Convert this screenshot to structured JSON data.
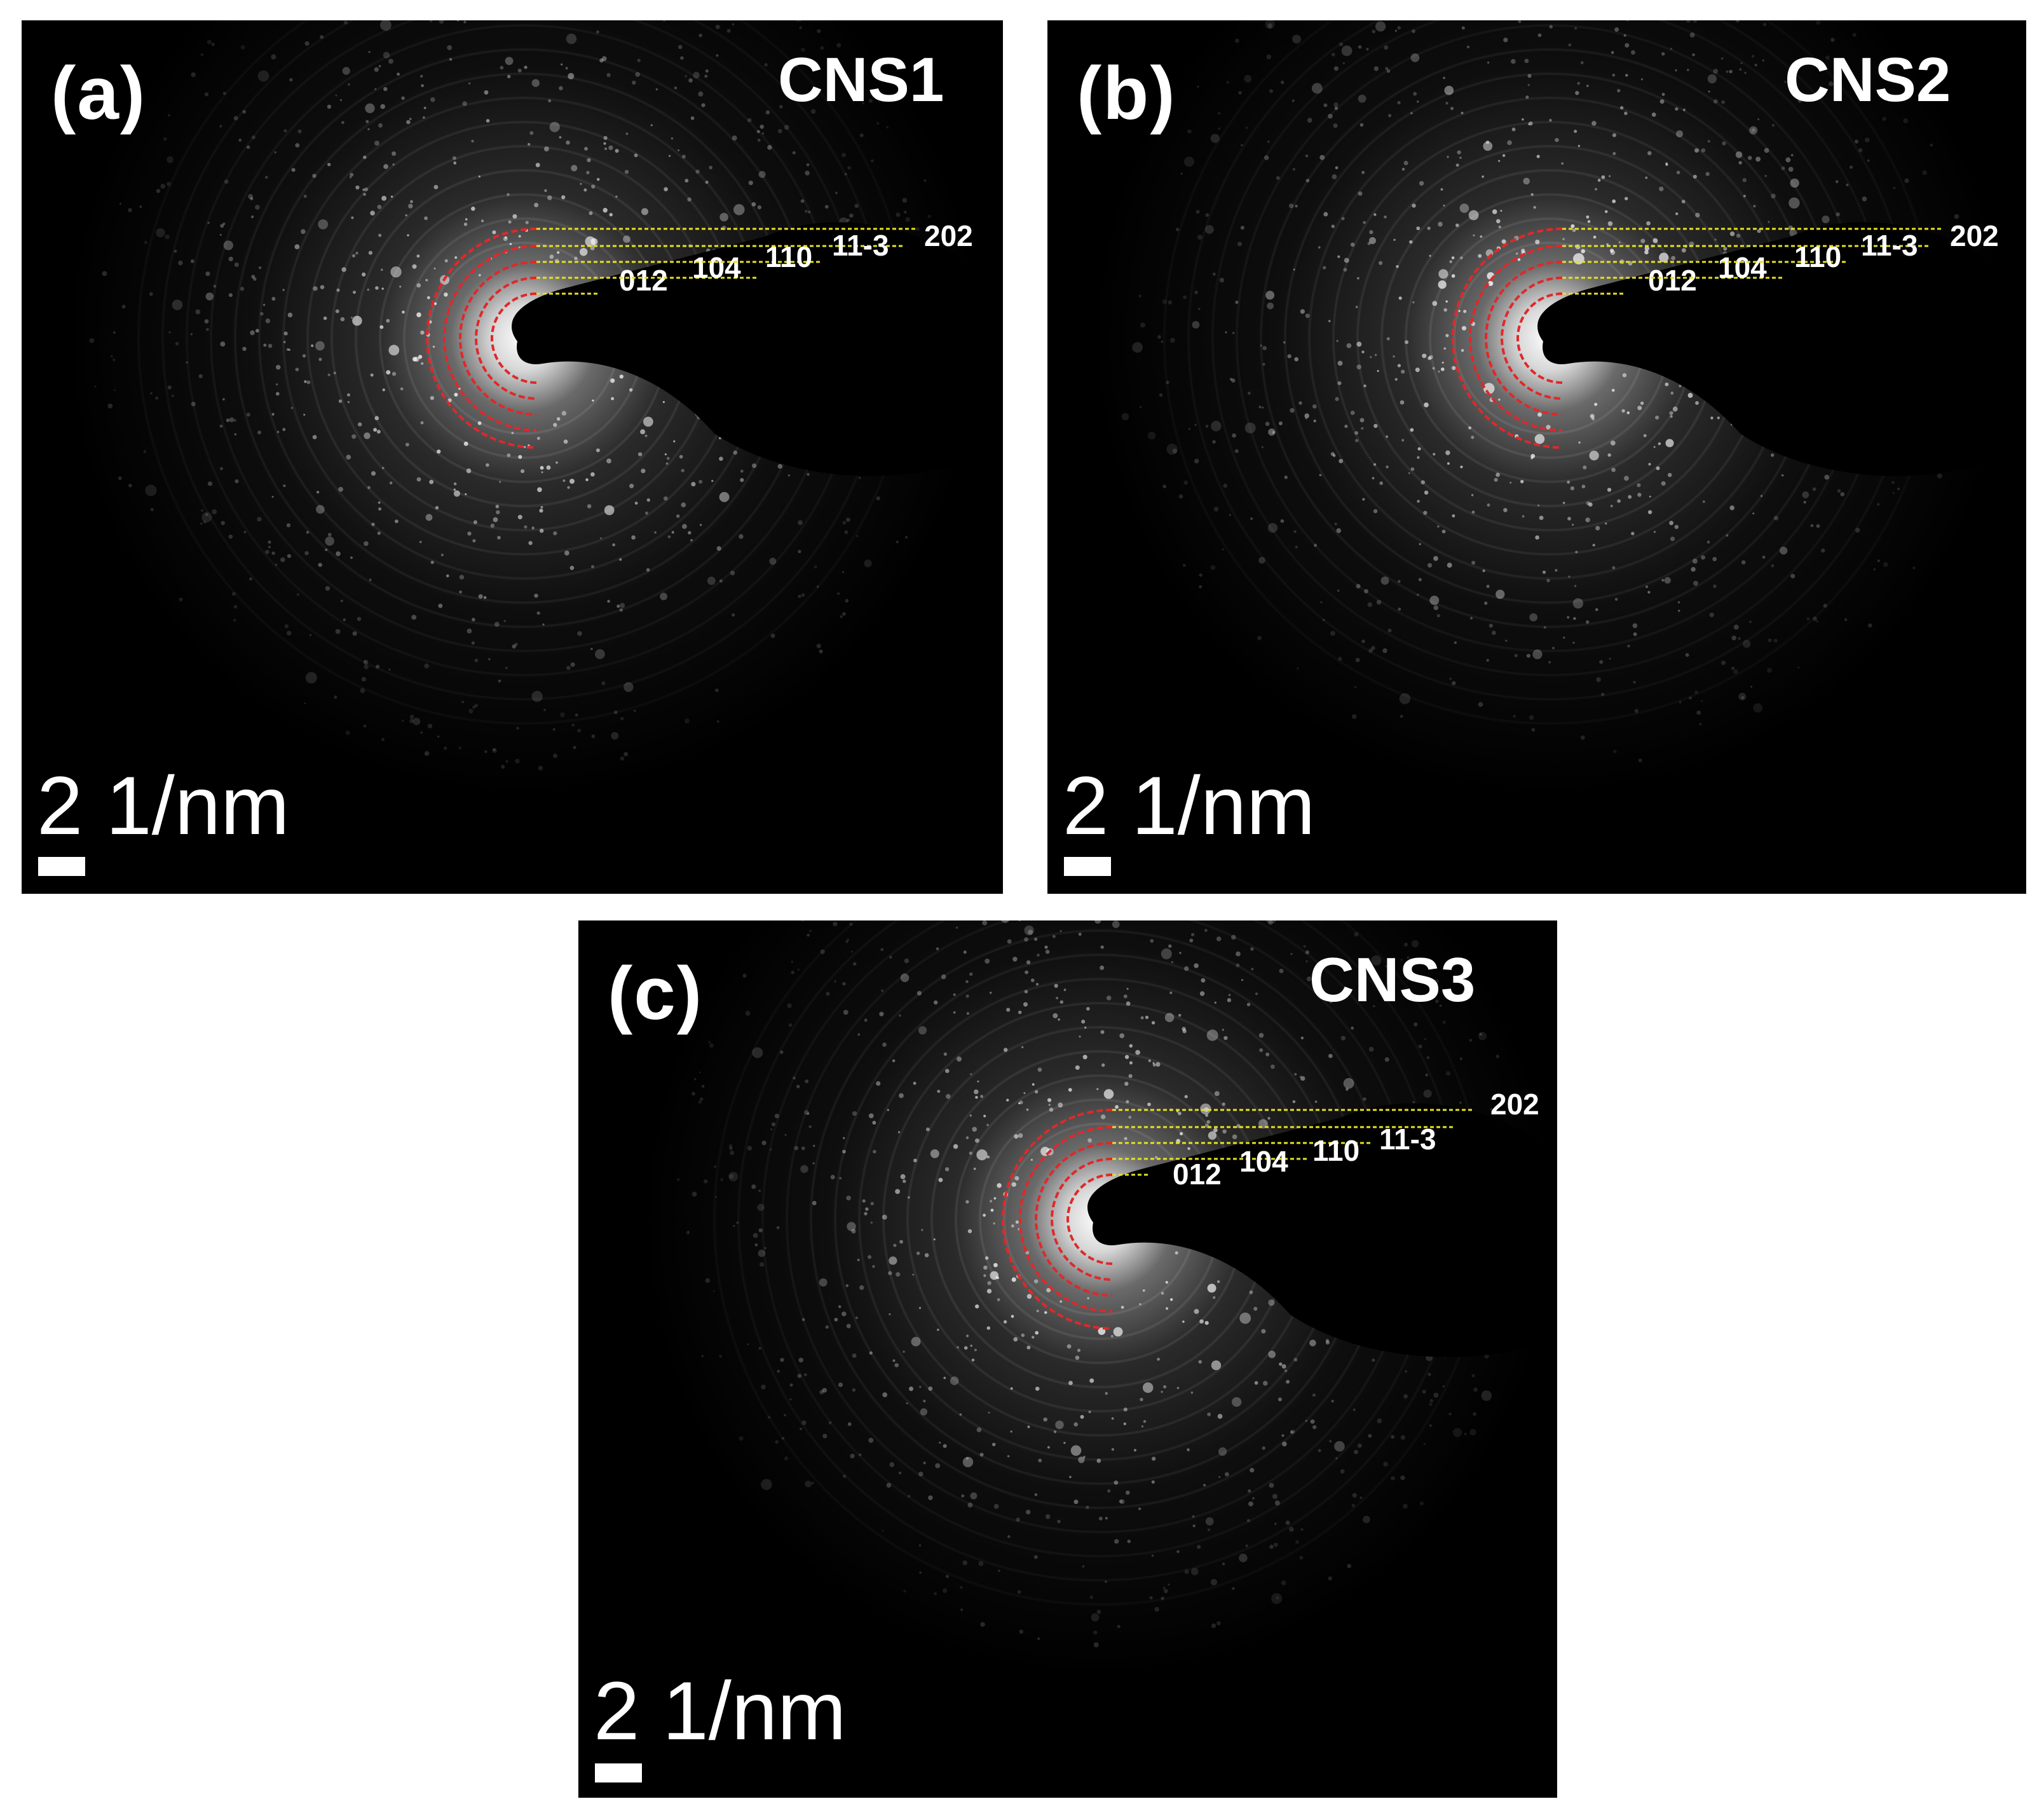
{
  "panels": [
    {
      "label": "(a)",
      "sample": "CNS1",
      "scale_label": "2 1/nm",
      "ring_indices": [
        "012",
        "104",
        "110",
        "11-3",
        "202"
      ]
    },
    {
      "label": "(b)",
      "sample": "CNS2",
      "scale_label": "2 1/nm",
      "ring_indices": [
        "012",
        "104",
        "110",
        "11-3",
        "202"
      ]
    },
    {
      "label": "(c)",
      "sample": "CNS3",
      "scale_label": "2 1/nm",
      "ring_indices": [
        "012",
        "104",
        "110",
        "11-3",
        "202"
      ]
    }
  ],
  "colors": {
    "background": "#000000",
    "text": "#ffffff",
    "ring_arc": "#e0282a",
    "index_line": "#e6e21e"
  }
}
